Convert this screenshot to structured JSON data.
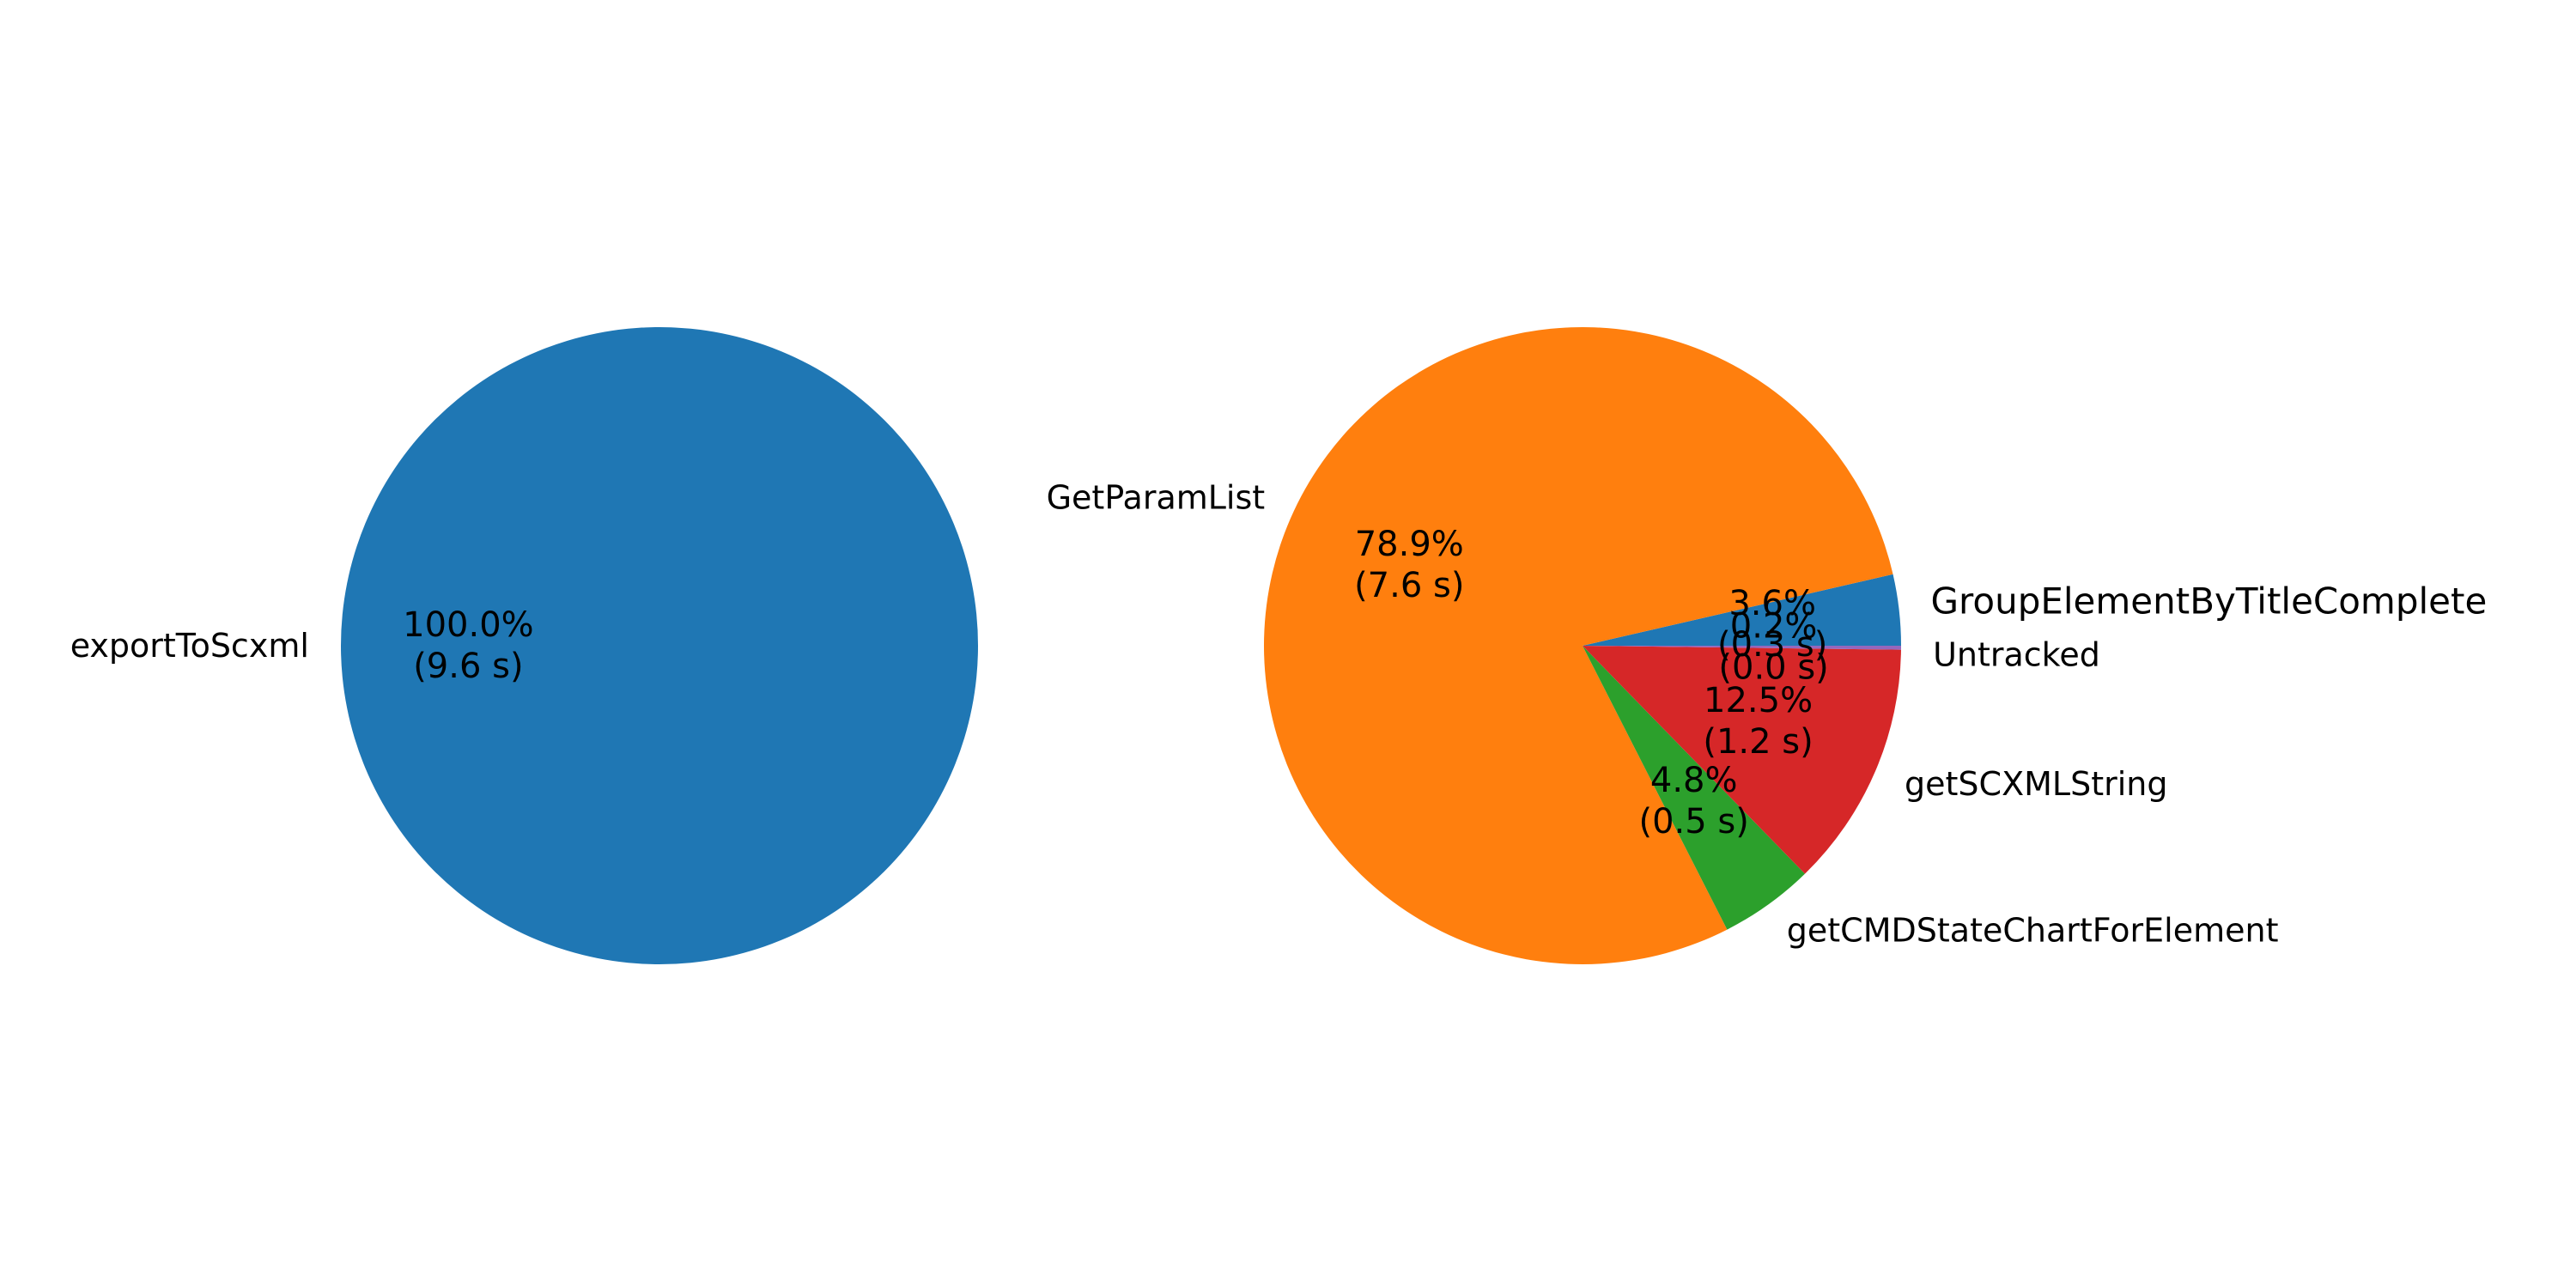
{
  "chart_data": [
    {
      "type": "pie",
      "slices": [
        {
          "label": "exportToScxml",
          "value": 9.6,
          "pct_label": "100.0%",
          "time_label": "(9.6 s)",
          "color": "#1f77b4"
        }
      ],
      "start_angle_deg": 0,
      "direction": "counterclockwise"
    },
    {
      "type": "pie",
      "slices": [
        {
          "label": "GroupElementByTitleComplete",
          "value": 3.6,
          "pct_label": "3.6%",
          "time_label": "(0.3 s)",
          "color": "#1f77b4"
        },
        {
          "label": "GetParamList",
          "value": 78.9,
          "pct_label": "78.9%",
          "time_label": "(7.6 s)",
          "color": "#ff7f0e"
        },
        {
          "label": "getCMDStateChartForElement",
          "value": 4.8,
          "pct_label": "4.8%",
          "time_label": "(0.5 s)",
          "color": "#2ca02c"
        },
        {
          "label": "getSCXMLString",
          "value": 12.5,
          "pct_label": "12.5%",
          "time_label": "(1.2 s)",
          "color": "#d62728"
        },
        {
          "label": "Untracked",
          "value": 0.2,
          "pct_label": "0.2%",
          "time_label": "(0.0 s)",
          "color": "#9467bd"
        }
      ],
      "start_angle_deg": 0,
      "direction": "counterclockwise"
    }
  ]
}
